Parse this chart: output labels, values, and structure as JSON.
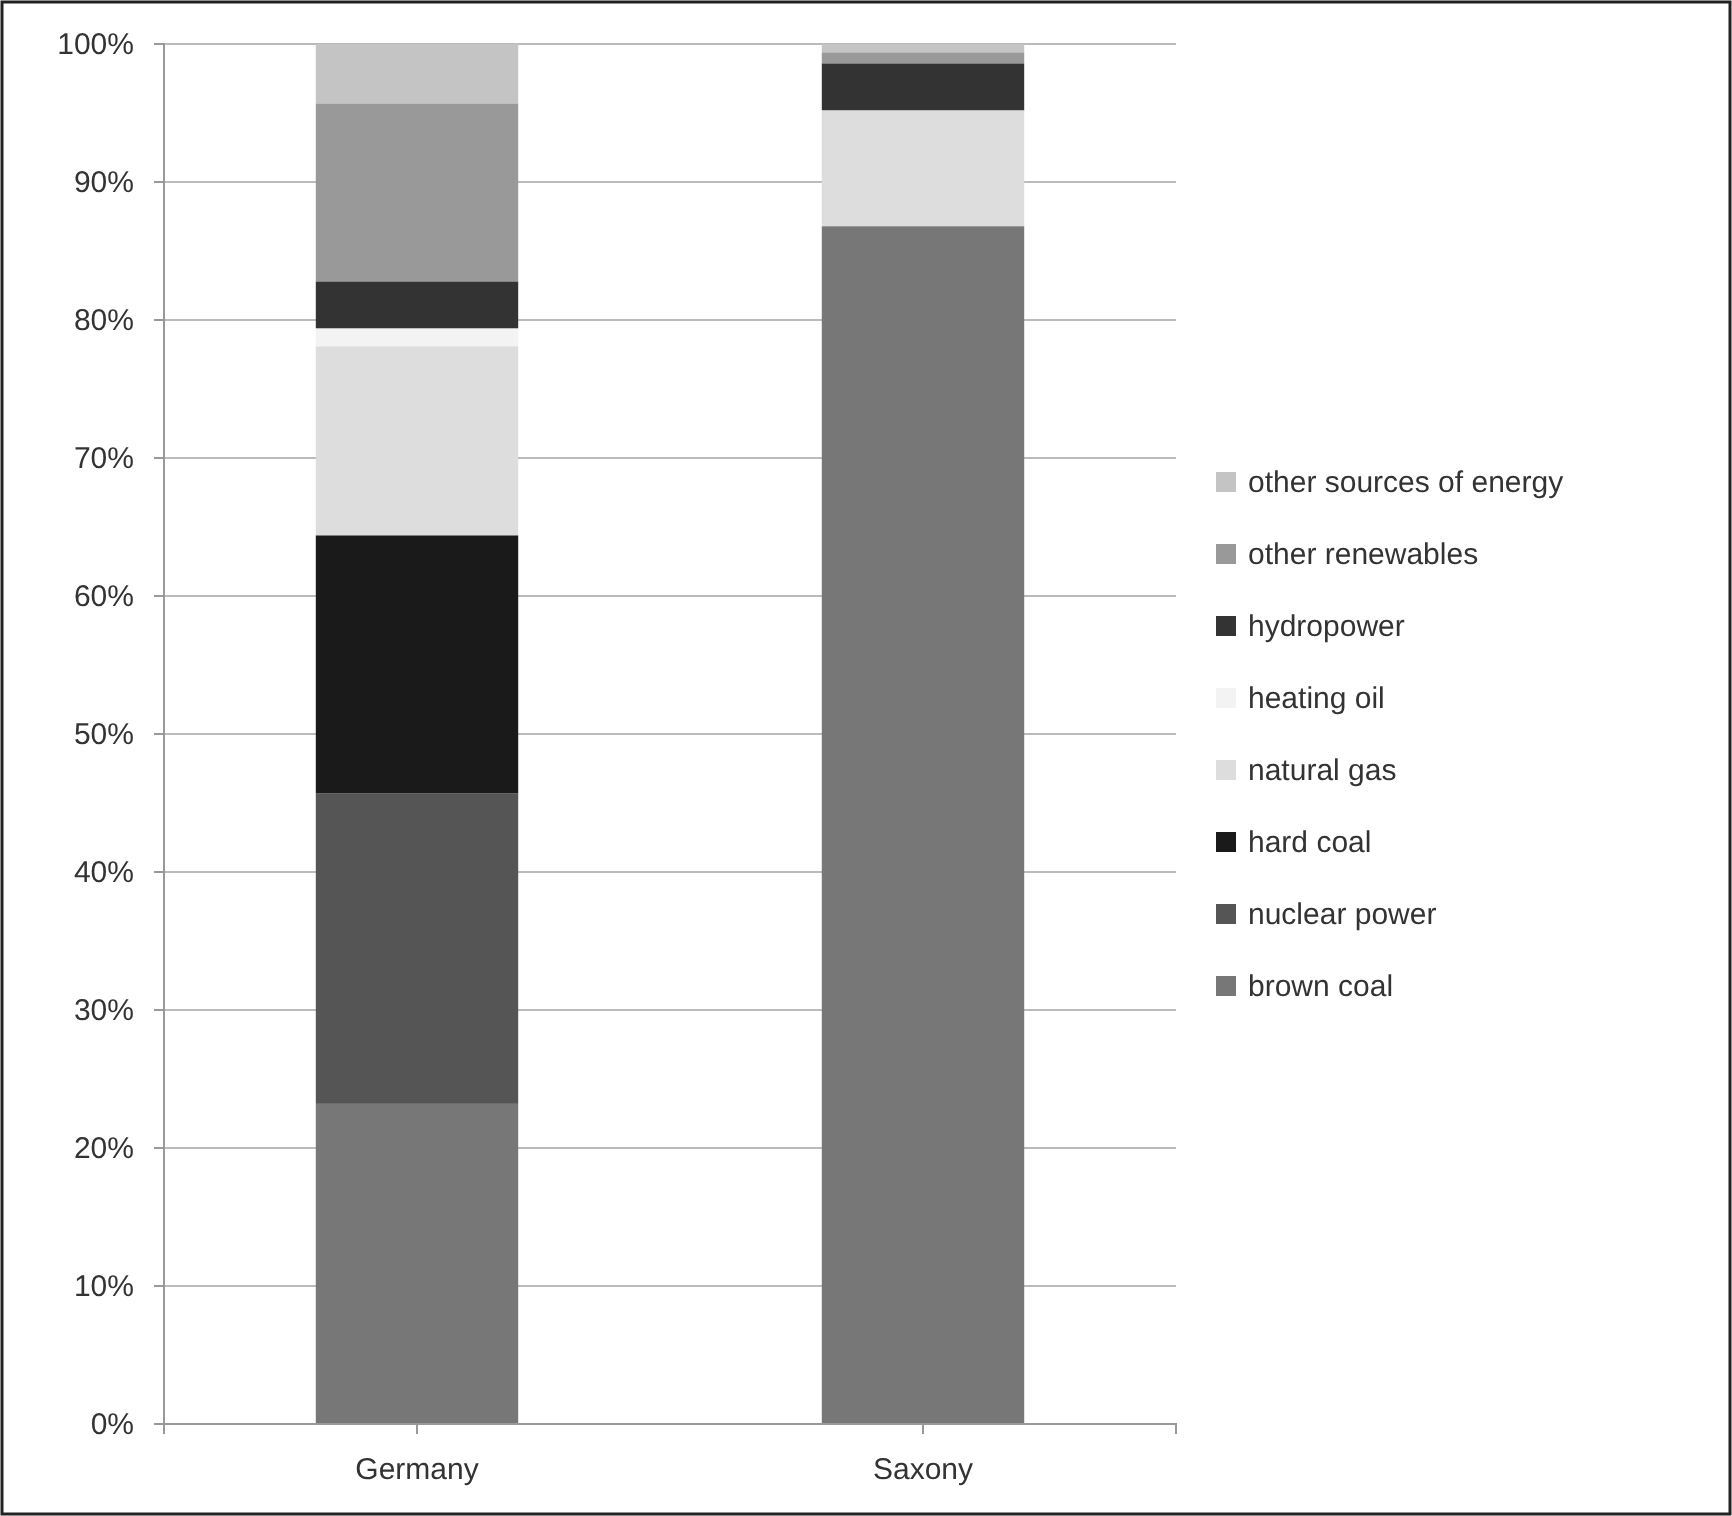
{
  "chart_data": {
    "type": "bar",
    "stacked": true,
    "categories": [
      "Germany",
      "Saxony"
    ],
    "series": [
      {
        "name": "brown coal",
        "color": "#777777",
        "values": [
          23.2,
          86.8
        ]
      },
      {
        "name": "nuclear power",
        "color": "#555555",
        "values": [
          22.5,
          0
        ]
      },
      {
        "name": "hard coal",
        "color": "#1a1a1a",
        "values": [
          18.7,
          0
        ]
      },
      {
        "name": "natural gas",
        "color": "#dddddd",
        "values": [
          13.7,
          8.4
        ]
      },
      {
        "name": "heating oil",
        "color": "#f3f3f3",
        "values": [
          1.3,
          0
        ]
      },
      {
        "name": "hydropower",
        "color": "#333333",
        "values": [
          3.4,
          3.4
        ]
      },
      {
        "name": "other renewables",
        "color": "#999999",
        "values": [
          12.9,
          0.8
        ]
      },
      {
        "name": "other sources of energy",
        "color": "#c4c4c4",
        "values": [
          4.3,
          0.6
        ]
      }
    ],
    "ylim": [
      0,
      100
    ],
    "yticks": [
      {
        "value": 0,
        "label": "0%"
      },
      {
        "value": 10,
        "label": "10%"
      },
      {
        "value": 20,
        "label": "20%"
      },
      {
        "value": 30,
        "label": "30%"
      },
      {
        "value": 40,
        "label": "40%"
      },
      {
        "value": 50,
        "label": "50%"
      },
      {
        "value": 60,
        "label": "60%"
      },
      {
        "value": 70,
        "label": "70%"
      },
      {
        "value": 80,
        "label": "80%"
      },
      {
        "value": 90,
        "label": "90%"
      },
      {
        "value": 100,
        "label": "100%"
      }
    ],
    "grid": "y",
    "legend": "right"
  }
}
